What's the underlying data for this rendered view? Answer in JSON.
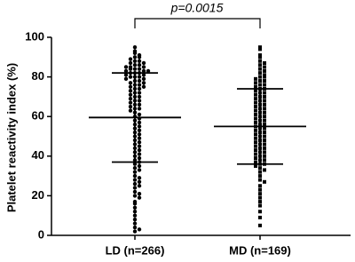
{
  "chart_data": {
    "type": "dotplot",
    "ylabel": "Platelet reactivity index (%)",
    "annotation": "p=0.0015",
    "ylim": [
      0,
      100
    ],
    "yticks": [
      0,
      20,
      40,
      60,
      80,
      100
    ],
    "color": "#000000",
    "groups": [
      {
        "label": "LD (n=266)",
        "marker": "circle",
        "mean": 59.5,
        "sd": 22.5,
        "values": [
          95,
          93,
          92,
          91,
          90,
          90,
          89,
          88,
          88,
          87,
          87,
          86,
          86,
          85,
          85,
          85,
          84,
          84,
          84,
          83,
          83,
          83,
          82,
          82,
          82,
          81,
          81,
          80,
          80,
          80,
          79,
          79,
          78,
          78,
          77,
          77,
          76,
          76,
          75,
          75,
          74,
          74,
          73,
          72,
          72,
          71,
          70,
          70,
          69,
          68,
          68,
          67,
          66,
          66,
          65,
          64,
          64,
          63,
          62,
          61,
          60,
          59,
          58,
          57,
          56,
          55,
          54,
          53,
          52,
          51,
          50,
          49,
          48,
          47,
          46,
          45,
          44,
          43,
          42,
          41,
          40,
          39,
          38,
          37,
          36,
          35,
          34,
          33,
          32,
          30,
          29,
          28,
          27,
          26,
          25,
          24,
          22,
          21,
          20,
          19,
          17,
          16,
          14,
          12,
          10,
          8,
          6,
          4,
          3,
          2
        ]
      },
      {
        "label": "MD (n=169)",
        "marker": "square",
        "mean": 55,
        "sd": 19,
        "values": [
          95,
          94,
          91,
          90,
          88,
          87,
          86,
          85,
          84,
          83,
          82,
          81,
          80,
          80,
          79,
          78,
          78,
          77,
          76,
          76,
          75,
          74,
          74,
          73,
          72,
          72,
          71,
          70,
          70,
          69,
          68,
          68,
          67,
          66,
          66,
          65,
          64,
          64,
          63,
          62,
          62,
          61,
          60,
          60,
          59,
          58,
          58,
          57,
          56,
          56,
          55,
          54,
          54,
          53,
          52,
          52,
          51,
          50,
          50,
          49,
          48,
          48,
          47,
          46,
          46,
          45,
          44,
          44,
          43,
          42,
          42,
          41,
          40,
          40,
          39,
          38,
          38,
          37,
          36,
          36,
          35,
          34,
          33,
          32,
          30,
          28,
          27,
          25,
          23,
          21,
          19,
          17,
          15,
          12,
          9,
          5
        ]
      }
    ]
  }
}
